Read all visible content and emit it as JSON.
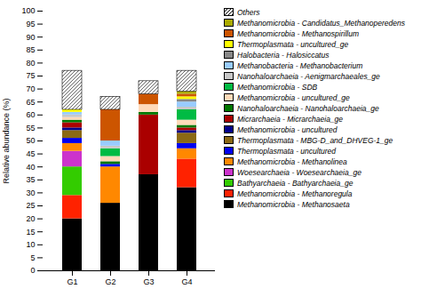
{
  "chart_data": {
    "type": "bar",
    "stacked": true,
    "categories": [
      "G1",
      "G2",
      "G3",
      "G4"
    ],
    "series": [
      {
        "name": "Methanomicrobia - Methanosaeta",
        "color": "#000000",
        "values": [
          20,
          26,
          37,
          32
        ]
      },
      {
        "name": "Methanomicrobia - Methanoregula",
        "color": "#ff2200",
        "values": [
          9,
          0,
          0,
          11
        ]
      },
      {
        "name": "Bathyarchaeia - Bathyarchaeia_ge",
        "color": "#33cc00",
        "values": [
          11,
          0,
          0,
          0
        ]
      },
      {
        "name": "Woesearchaeia - Woesearchaeia_ge",
        "color": "#cc33cc",
        "values": [
          6,
          0,
          0,
          0
        ]
      },
      {
        "name": "Methanomicrobia - Methanolinea",
        "color": "#ff8800",
        "values": [
          3,
          14,
          0,
          4
        ]
      },
      {
        "name": "Thermoplasmata - uncultured",
        "color": "#0000ee",
        "values": [
          2,
          1,
          0,
          2
        ]
      },
      {
        "name": "Thermoplasmata - MBG-D_and_DHVEG-1_ge",
        "color": "#8B6914",
        "values": [
          3,
          0,
          0,
          4
        ]
      },
      {
        "name": "Methanomicrobia - uncultured",
        "color": "#00008B",
        "values": [
          1,
          0,
          0,
          1
        ]
      },
      {
        "name": "Micrarchaeia - Micrarchaeia_ge",
        "color": "#aa0000",
        "values": [
          2,
          0,
          23,
          1
        ]
      },
      {
        "name": "Nanohaloarchaeia - Nanohaloarchaeia_ge",
        "color": "#007700",
        "values": [
          1,
          1,
          1,
          1
        ]
      },
      {
        "name": "Methanomicrobia - uncultured_ge",
        "color": "#FFDAB9",
        "values": [
          1,
          2,
          3,
          2
        ]
      },
      {
        "name": "Methanomicrobia - SDB",
        "color": "#00bb44",
        "values": [
          0,
          3,
          0,
          4
        ]
      },
      {
        "name": "Nanohaloarchaeia - Aenigmarchaeales_ge",
        "color": "#c8c8c8",
        "values": [
          1,
          1,
          0,
          1
        ]
      },
      {
        "name": "Methanobacteria - Methanobacterium",
        "color": "#99ccff",
        "values": [
          1,
          2,
          0,
          2
        ]
      },
      {
        "name": "Halobacteria - Halosiccatus",
        "color": "#888888",
        "values": [
          0,
          0,
          0,
          1
        ]
      },
      {
        "name": "Thermoplasmata - uncultured_ge",
        "color": "#ffff00",
        "values": [
          1,
          0,
          0,
          1
        ]
      },
      {
        "name": "Methanomicrobia - Methanospirillum",
        "color": "#cc5500",
        "values": [
          0,
          12,
          4,
          1
        ]
      },
      {
        "name": "Methanomicrobia - Candidatus_Methanoperedens",
        "color": "#aaaa00",
        "values": [
          0,
          0,
          0,
          1
        ]
      },
      {
        "name": "Others",
        "color": "#ffffff",
        "values": [
          15,
          5,
          5,
          8
        ]
      }
    ],
    "ylabel": "Relative abundance (%)",
    "ylim": [
      0,
      100
    ],
    "yticks": [
      0,
      5,
      10,
      15,
      20,
      25,
      30,
      35,
      40,
      45,
      50,
      55,
      60,
      65,
      70,
      75,
      80,
      85,
      90,
      95,
      100
    ],
    "grid": false,
    "legend": "right"
  }
}
